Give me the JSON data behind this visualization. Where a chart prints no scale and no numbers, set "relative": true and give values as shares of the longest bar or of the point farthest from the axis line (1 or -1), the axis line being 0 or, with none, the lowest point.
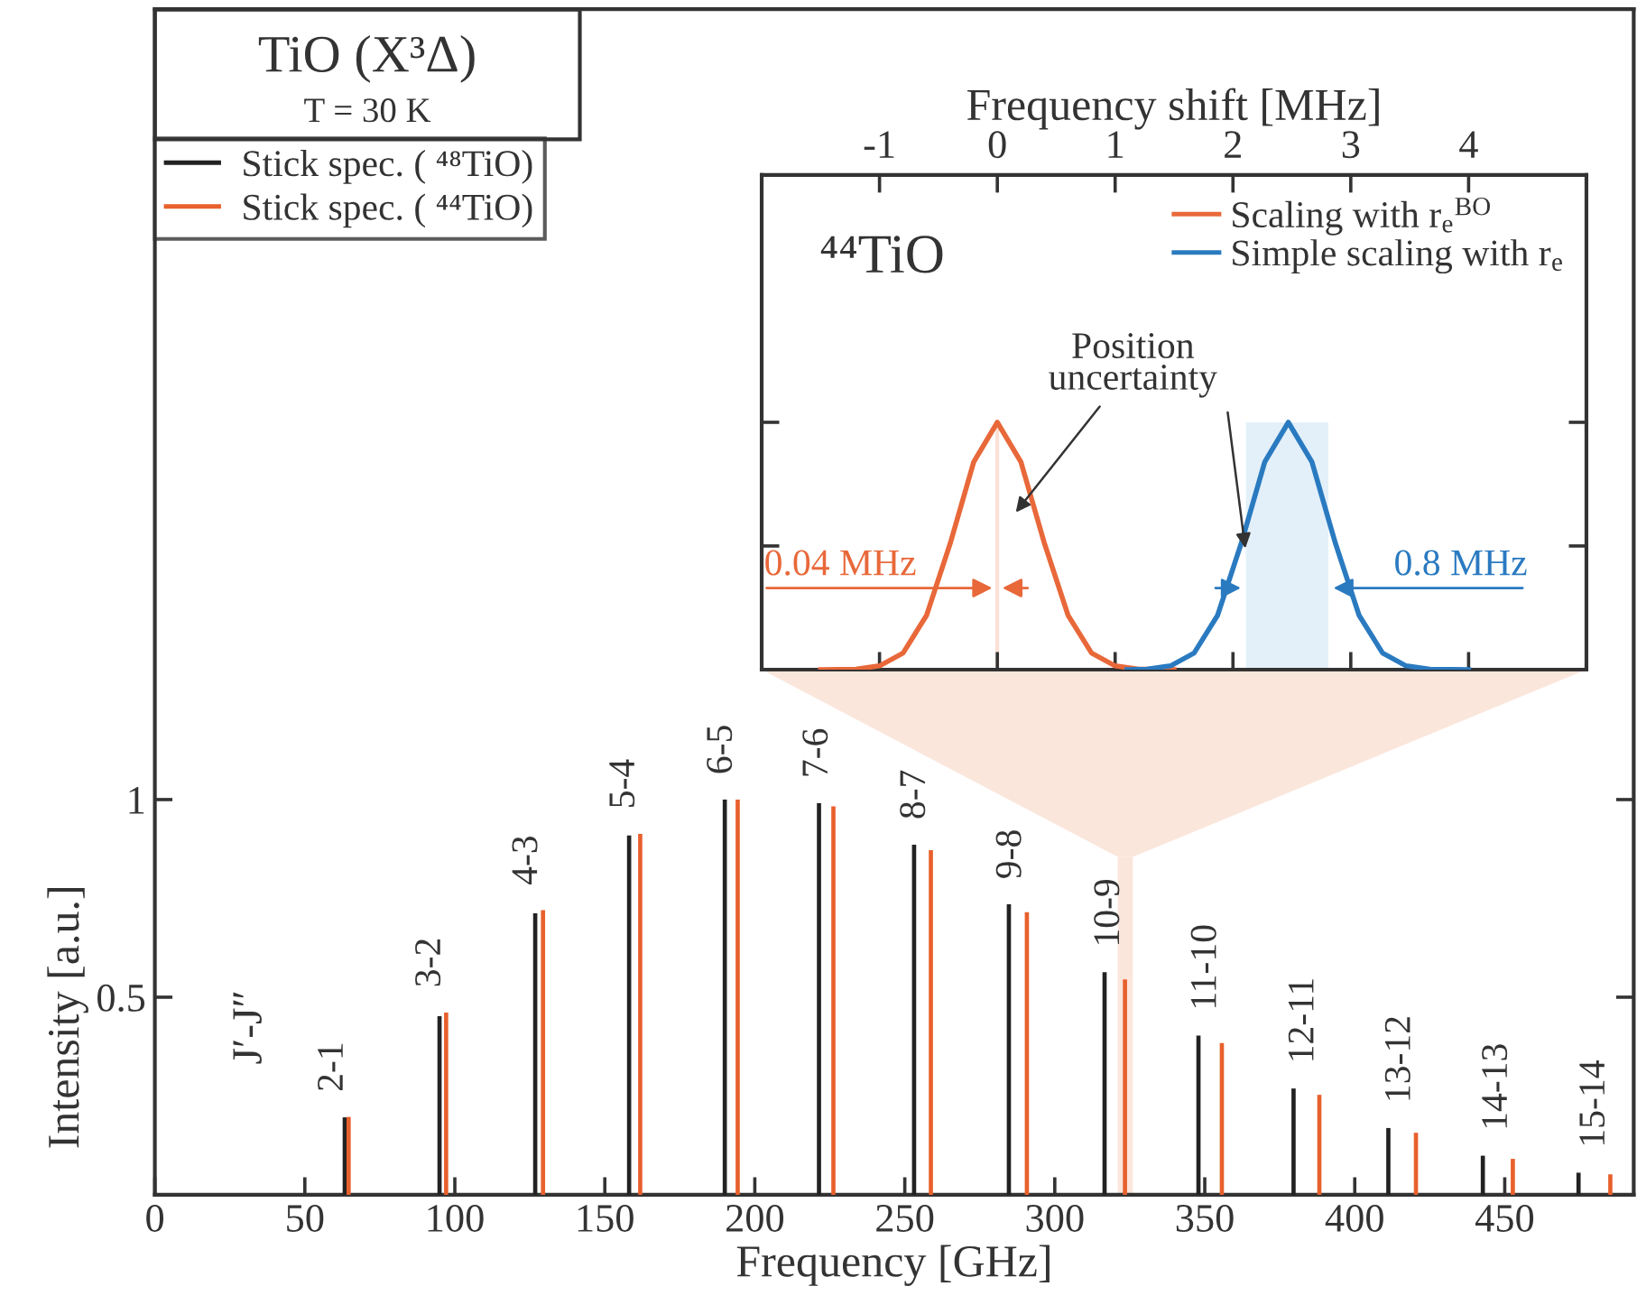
{
  "chart_data": [
    {
      "type": "bar",
      "title": "TiO (X³Δ)",
      "subtitle": "T = 30 K",
      "xlabel": "Frequency [GHz]",
      "ylabel": "Intensity [a.u.]",
      "xlim": [
        0,
        493
      ],
      "ylim": [
        0,
        3.0
      ],
      "xticks": [
        0,
        50,
        100,
        150,
        200,
        250,
        300,
        350,
        400,
        450
      ],
      "yticks": [
        0.5,
        1
      ],
      "legend": "top left",
      "series": [
        {
          "name": "Stick spec. ( ⁴⁸TiO)",
          "color": "#222222",
          "x": [
            63.3,
            94.9,
            126.8,
            158.1,
            190.0,
            221.4,
            253.1,
            284.7,
            316.6,
            347.9,
            379.6,
            411.2,
            442.7,
            474.6
          ],
          "values": [
            0.196,
            0.452,
            0.712,
            0.909,
            1.0,
            0.991,
            0.886,
            0.735,
            0.563,
            0.403,
            0.269,
            0.169,
            0.099,
            0.056
          ]
        },
        {
          "name": "Stick spec. ( ⁴⁴TiO)",
          "color": "#e8602c",
          "x": [
            64.6,
            97.1,
            129.4,
            161.8,
            194.3,
            226.2,
            258.7,
            290.7,
            323.4,
            355.7,
            388.2,
            420.4,
            452.7,
            485.2
          ],
          "values": [
            0.197,
            0.461,
            0.72,
            0.913,
            1.0,
            0.983,
            0.872,
            0.715,
            0.545,
            0.384,
            0.253,
            0.157,
            0.091,
            0.052
          ]
        }
      ],
      "bands": [
        {
          "axis": "x",
          "from": 321,
          "to": 326,
          "color": "#fbe6dc"
        }
      ],
      "annotations": [
        "J′-J″",
        {
          "text": "2-1",
          "x": 64.6,
          "y": 0.197
        },
        {
          "text": "3-2",
          "x": 97.1,
          "y": 0.461
        },
        {
          "text": "4-3",
          "x": 129.4,
          "y": 0.72
        },
        {
          "text": "5-4",
          "x": 161.8,
          "y": 0.913
        },
        {
          "text": "6-5",
          "x": 194.3,
          "y": 1.0
        },
        {
          "text": "7-6",
          "x": 226.2,
          "y": 0.991
        },
        {
          "text": "8-7",
          "x": 258.7,
          "y": 0.886
        },
        {
          "text": "9-8",
          "x": 290.7,
          "y": 0.735
        },
        {
          "text": "10-9",
          "x": 323.4,
          "y": 0.563
        },
        {
          "text": "11-10",
          "x": 355.7,
          "y": 0.403
        },
        {
          "text": "12-11",
          "x": 388.2,
          "y": 0.269
        },
        {
          "text": "13-12",
          "x": 420.4,
          "y": 0.169
        },
        {
          "text": "14-13",
          "x": 452.7,
          "y": 0.099
        },
        {
          "text": "15-14",
          "x": 485.2,
          "y": 0.056
        }
      ]
    },
    {
      "type": "line",
      "xlabel": "Frequency shift [MHz]",
      "xlim": [
        -2,
        5
      ],
      "xticks": [
        -1,
        0,
        1,
        2,
        3,
        4
      ],
      "relative": true,
      "tick_labels": "x",
      "legend": "top right",
      "series": [
        {
          "name": "Scaling with r$_{e}$$^{BO}$",
          "color": "#e8683a",
          "x": [
            -1.5,
            -1.2,
            -1.0,
            -0.8,
            -0.6,
            -0.4,
            -0.2,
            0,
            0.2,
            0.4,
            0.6,
            0.8,
            1.0,
            1.2,
            1.5
          ],
          "values": [
            0,
            0.002,
            0.015,
            0.067,
            0.22,
            0.51,
            0.84,
            1,
            0.84,
            0.51,
            0.22,
            0.067,
            0.015,
            0.002,
            0
          ]
        },
        {
          "name": "Simple scaling with r$_{e}$",
          "color": "#2a7ac0",
          "x": [
            1.1,
            1.27,
            1.47,
            1.67,
            1.87,
            2.07,
            2.27,
            2.47,
            2.67,
            2.87,
            3.07,
            3.27,
            3.47,
            3.67,
            4.0
          ],
          "values": [
            0,
            0.002,
            0.015,
            0.067,
            0.22,
            0.51,
            0.84,
            1,
            0.84,
            0.51,
            0.22,
            0.067,
            0.015,
            0.002,
            0
          ]
        }
      ],
      "bands": [
        {
          "axis": "x",
          "from": 2.11,
          "to": 2.81,
          "color": "#e3f0f9"
        }
      ],
      "ref_lines": [
        {
          "axis": "x",
          "value": 0,
          "color": "#fbe0d5"
        }
      ],
      "annotations": [
        "⁴⁴TiO",
        "Position\nuncertainty",
        {
          "text": "0.04 MHz",
          "x": 0,
          "y": 0.33
        },
        {
          "text": "0.8 MHz",
          "x": 2.81,
          "y": 0.33
        }
      ]
    }
  ]
}
